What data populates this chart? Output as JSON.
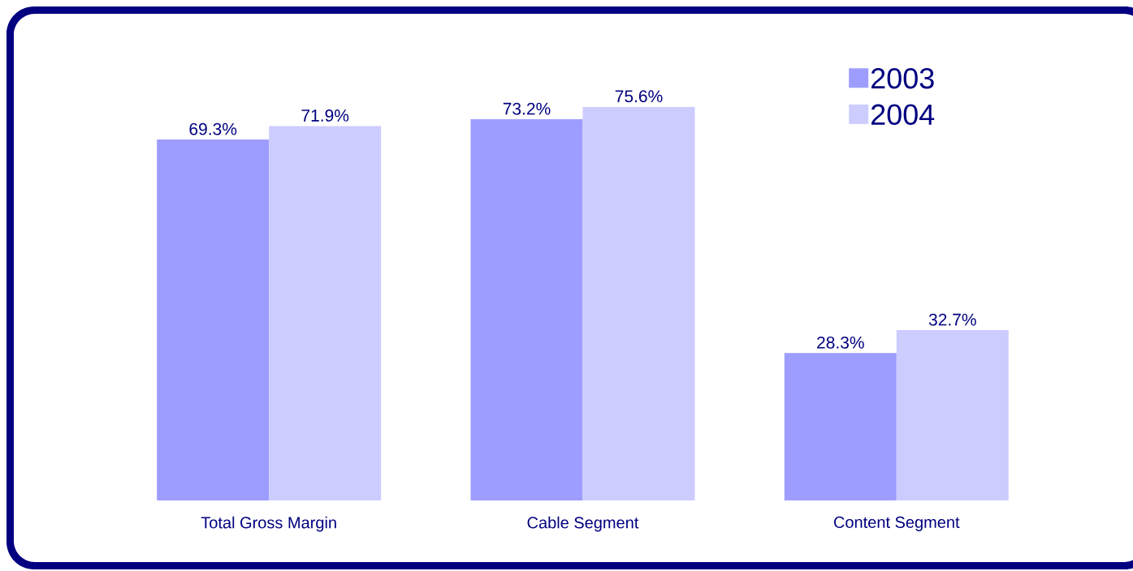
{
  "chart_data": {
    "type": "bar",
    "categories": [
      "Total Gross Margin",
      "Cable Segment",
      "Content Segment"
    ],
    "series": [
      {
        "name": "2003",
        "color": "#9d9dff",
        "values": [
          69.3,
          73.2,
          28.3
        ],
        "value_labels": [
          "69.3%",
          "73.2%",
          "28.3%"
        ]
      },
      {
        "name": "2004",
        "color": "#ccccff",
        "values": [
          71.9,
          75.6,
          32.7
        ],
        "value_labels": [
          "71.9%",
          "75.6%",
          "32.7%"
        ]
      }
    ],
    "legend": "top right"
  }
}
